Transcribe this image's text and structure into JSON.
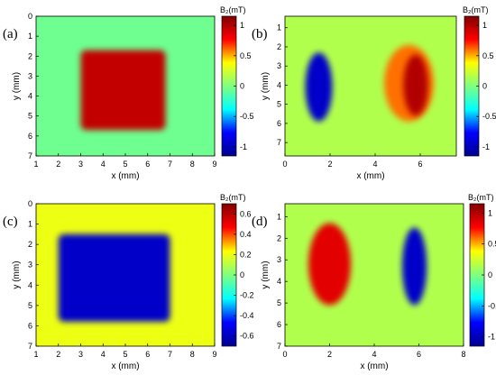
{
  "colors": {
    "background": "#3fd2c4",
    "colormap": [
      "#00008f",
      "#0000ff",
      "#00ffff",
      "#7fff7f",
      "#ffff00",
      "#ff0000",
      "#800000"
    ]
  },
  "chart_data": [
    {
      "type": "heatmap",
      "panel_label": "(a)",
      "xlabel": "x (mm)",
      "ylabel": "y (mm)",
      "colorbar_label": "B₂(mT)",
      "colorbar_range": [
        -1.15,
        1.15
      ],
      "colorbar_ticks": [
        "1",
        "0.5",
        "0",
        "-0.5",
        "-1"
      ],
      "colorbar_tick_values": [
        1,
        0.5,
        0,
        -0.5,
        -1
      ],
      "xlim": [
        1,
        9
      ],
      "ylim": [
        7,
        0
      ],
      "xticks": [
        "1",
        "2",
        "3",
        "4",
        "5",
        "6",
        "7",
        "8",
        "9"
      ],
      "xtick_values": [
        1,
        2,
        3,
        4,
        5,
        6,
        7,
        8,
        9
      ],
      "yticks": [
        "0",
        "1",
        "2",
        "3",
        "4",
        "5",
        "6",
        "7"
      ],
      "ytick_values": [
        0,
        1,
        2,
        3,
        4,
        5,
        6,
        7
      ],
      "background_value": -0.05,
      "features": [
        {
          "shape": "rect",
          "x_range": [
            3.0,
            6.8
          ],
          "y_range": [
            1.7,
            5.7
          ],
          "value": 0.95
        }
      ]
    },
    {
      "type": "heatmap",
      "panel_label": "(b)",
      "xlabel": "x (mm)",
      "ylabel": "y (mm)",
      "colorbar_label": "B₂(mT)",
      "colorbar_range": [
        -1.15,
        1.15
      ],
      "colorbar_ticks": [
        "1",
        "0.5",
        "0",
        "-0.5",
        "-1"
      ],
      "colorbar_tick_values": [
        1,
        0.5,
        0,
        -0.5,
        -1
      ],
      "xlim": [
        0,
        7.6
      ],
      "ylim": [
        7.7,
        0.4
      ],
      "xticks": [
        "0",
        "2",
        "4",
        "6"
      ],
      "xtick_values": [
        0,
        2,
        4,
        6
      ],
      "yticks": [
        "1",
        "2",
        "3",
        "4",
        "5",
        "6",
        "7"
      ],
      "ytick_values": [
        1,
        2,
        3,
        4,
        5,
        6,
        7
      ],
      "background_value": 0.15,
      "features": [
        {
          "shape": "ellipse",
          "cx": 1.5,
          "cy": 4.1,
          "rx": 0.6,
          "ry": 1.8,
          "value": -0.95
        },
        {
          "shape": "ellipse",
          "cx": 5.5,
          "cy": 3.9,
          "rx": 1.1,
          "ry": 2.0,
          "value": 0.6
        },
        {
          "shape": "ellipse",
          "cx": 5.8,
          "cy": 4.0,
          "rx": 0.55,
          "ry": 1.6,
          "value": 1.0
        }
      ]
    },
    {
      "type": "heatmap",
      "panel_label": "(c)",
      "xlabel": "x (mm)",
      "ylabel": "y (mm)",
      "colorbar_label": "B₂(mT)",
      "colorbar_range": [
        -0.7,
        0.7
      ],
      "colorbar_ticks": [
        "0.6",
        "0.4",
        "0.2",
        "0",
        "-0.2",
        "-0.4",
        "-0.6"
      ],
      "colorbar_tick_values": [
        0.6,
        0.4,
        0.2,
        0,
        -0.2,
        -0.4,
        -0.6
      ],
      "xlim": [
        1,
        9
      ],
      "ylim": [
        7,
        0
      ],
      "xticks": [
        "1",
        "2",
        "3",
        "4",
        "5",
        "6",
        "7",
        "8",
        "9"
      ],
      "xtick_values": [
        1,
        2,
        3,
        4,
        5,
        6,
        7,
        8,
        9
      ],
      "yticks": [
        "0",
        "1",
        "2",
        "3",
        "4",
        "5",
        "6",
        "7"
      ],
      "ytick_values": [
        0,
        1,
        2,
        3,
        4,
        5,
        6,
        7
      ],
      "background_value": 0.2,
      "features": [
        {
          "shape": "rect",
          "x_range": [
            2.0,
            7.0
          ],
          "y_range": [
            1.5,
            5.8
          ],
          "value": -0.58
        }
      ]
    },
    {
      "type": "heatmap",
      "panel_label": "(d)",
      "xlabel": "x (mm)",
      "ylabel": "y (mm)",
      "colorbar_label": "B₂(mT)",
      "colorbar_range": [
        -1.15,
        1.15
      ],
      "colorbar_ticks": [
        "1",
        "0.5",
        "0",
        "-0.5",
        "-1"
      ],
      "colorbar_tick_values": [
        1,
        0.5,
        0,
        -0.5,
        -1
      ],
      "xlim": [
        0,
        8
      ],
      "ylim": [
        7,
        0.4
      ],
      "xticks": [
        "0",
        "2",
        "4",
        "6",
        "8"
      ],
      "xtick_values": [
        0,
        2,
        4,
        6,
        8
      ],
      "yticks": [
        "1",
        "2",
        "3",
        "4",
        "5",
        "6",
        "7"
      ],
      "ytick_values": [
        1,
        2,
        3,
        4,
        5,
        6,
        7
      ],
      "background_value": 0.15,
      "features": [
        {
          "shape": "ellipse",
          "cx": 2.0,
          "cy": 3.2,
          "rx": 0.95,
          "ry": 1.9,
          "value": 0.85
        },
        {
          "shape": "ellipse",
          "cx": 5.8,
          "cy": 3.3,
          "rx": 0.55,
          "ry": 1.8,
          "value": -0.95
        }
      ]
    }
  ]
}
